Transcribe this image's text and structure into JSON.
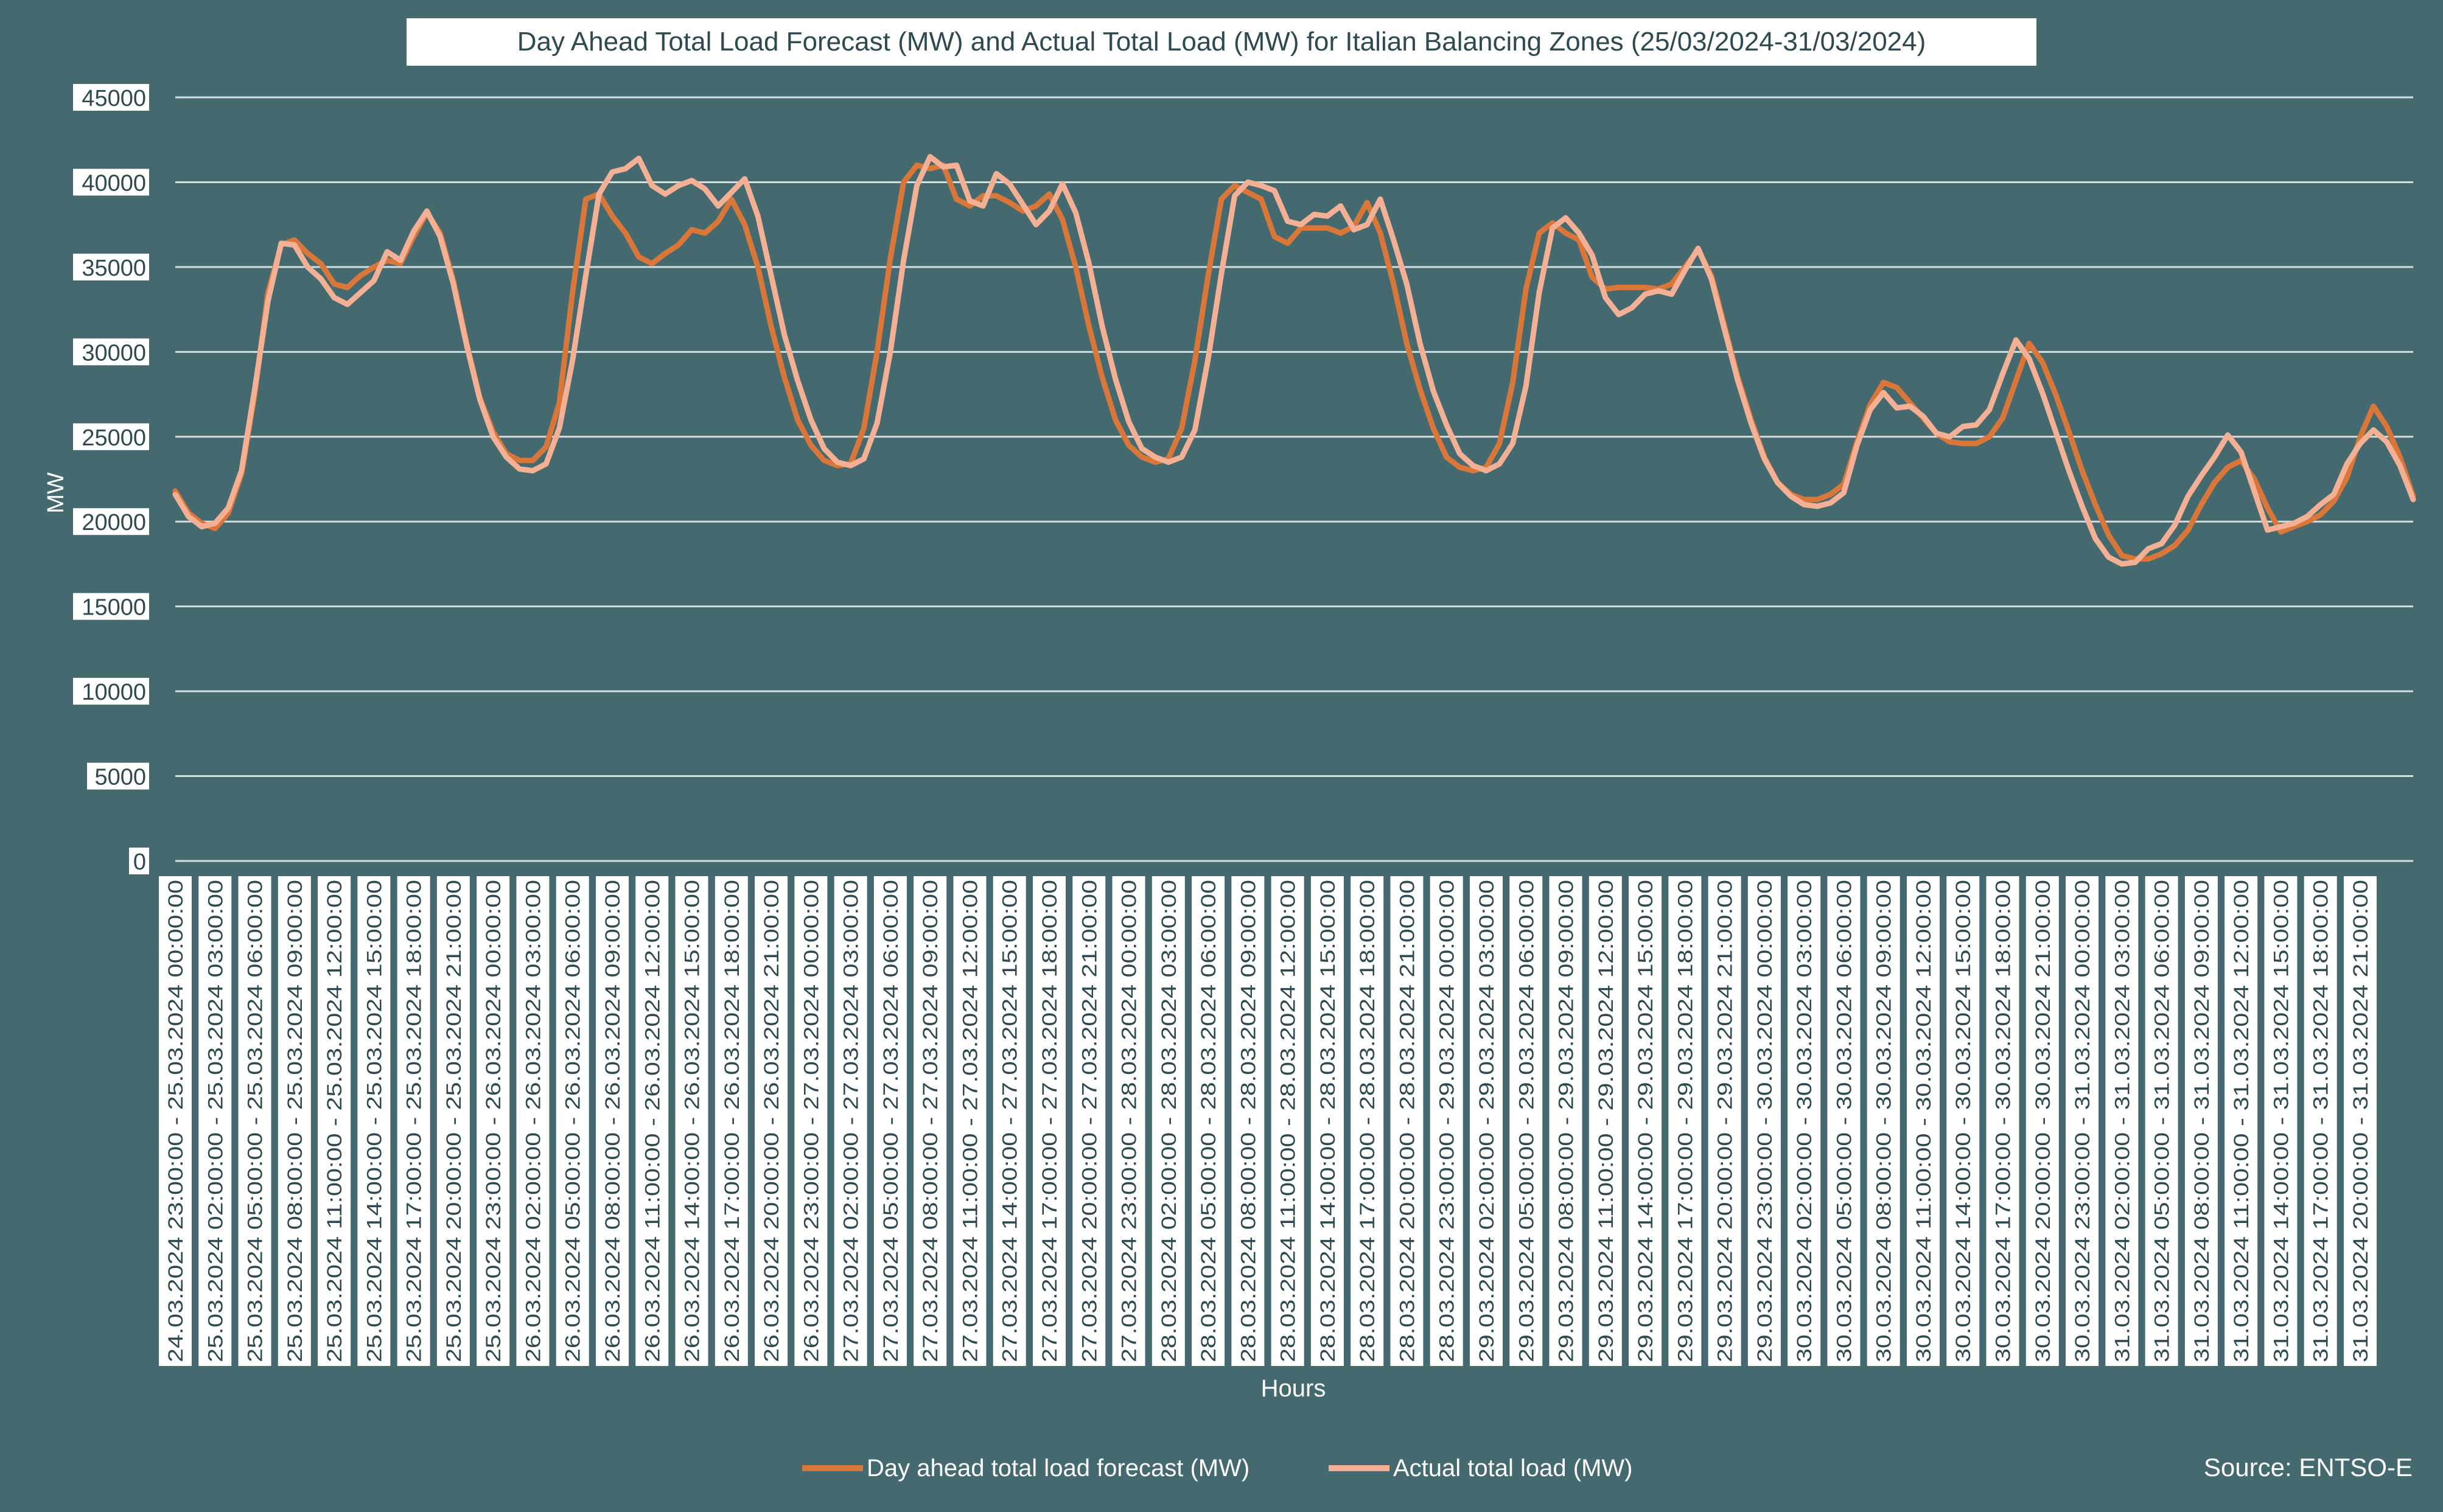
{
  "chart_data": {
    "type": "line",
    "title": "Day Ahead Total Load Forecast (MW) and Actual Total Load (MW) for Italian Balancing Zones (25/03/2024-31/03/2024)",
    "xlabel": "Hours",
    "ylabel": "MW",
    "ylim": [
      0,
      45000
    ],
    "yticks": [
      0,
      5000,
      10000,
      15000,
      20000,
      25000,
      30000,
      35000,
      40000,
      45000
    ],
    "grid": true,
    "legend_position": "bottom",
    "source": "Source: ENTSO-E",
    "x_tick_labels": [
      "24.03.2024 23:00:00 - 25.03.2024 00:00:00",
      "25.03.2024 02:00:00 - 25.03.2024 03:00:00",
      "25.03.2024 05:00:00 - 25.03.2024 06:00:00",
      "25.03.2024 08:00:00 - 25.03.2024 09:00:00",
      "25.03.2024 11:00:00 - 25.03.2024 12:00:00",
      "25.03.2024 14:00:00 - 25.03.2024 15:00:00",
      "25.03.2024 17:00:00 - 25.03.2024 18:00:00",
      "25.03.2024 20:00:00 - 25.03.2024 21:00:00",
      "25.03.2024 23:00:00 - 26.03.2024 00:00:00",
      "26.03.2024 02:00:00 - 26.03.2024 03:00:00",
      "26.03.2024 05:00:00 - 26.03.2024 06:00:00",
      "26.03.2024 08:00:00 - 26.03.2024 09:00:00",
      "26.03.2024 11:00:00 - 26.03.2024 12:00:00",
      "26.03.2024 14:00:00 - 26.03.2024 15:00:00",
      "26.03.2024 17:00:00 - 26.03.2024 18:00:00",
      "26.03.2024 20:00:00 - 26.03.2024 21:00:00",
      "26.03.2024 23:00:00 - 27.03.2024 00:00:00",
      "27.03.2024 02:00:00 - 27.03.2024 03:00:00",
      "27.03.2024 05:00:00 - 27.03.2024 06:00:00",
      "27.03.2024 08:00:00 - 27.03.2024 09:00:00",
      "27.03.2024 11:00:00 - 27.03.2024 12:00:00",
      "27.03.2024 14:00:00 - 27.03.2024 15:00:00",
      "27.03.2024 17:00:00 - 27.03.2024 18:00:00",
      "27.03.2024 20:00:00 - 27.03.2024 21:00:00",
      "27.03.2024 23:00:00 - 28.03.2024 00:00:00",
      "28.03.2024 02:00:00 - 28.03.2024 03:00:00",
      "28.03.2024 05:00:00 - 28.03.2024 06:00:00",
      "28.03.2024 08:00:00 - 28.03.2024 09:00:00",
      "28.03.2024 11:00:00 - 28.03.2024 12:00:00",
      "28.03.2024 14:00:00 - 28.03.2024 15:00:00",
      "28.03.2024 17:00:00 - 28.03.2024 18:00:00",
      "28.03.2024 20:00:00 - 28.03.2024 21:00:00",
      "28.03.2024 23:00:00 - 29.03.2024 00:00:00",
      "29.03.2024 02:00:00 - 29.03.2024 03:00:00",
      "29.03.2024 05:00:00 - 29.03.2024 06:00:00",
      "29.03.2024 08:00:00 - 29.03.2024 09:00:00",
      "29.03.2024 11:00:00 - 29.03.2024 12:00:00",
      "29.03.2024 14:00:00 - 29.03.2024 15:00:00",
      "29.03.2024 17:00:00 - 29.03.2024 18:00:00",
      "29.03.2024 20:00:00 - 29.03.2024 21:00:00",
      "29.03.2024 23:00:00 - 30.03.2024 00:00:00",
      "30.03.2024 02:00:00 - 30.03.2024 03:00:00",
      "30.03.2024 05:00:00 - 30.03.2024 06:00:00",
      "30.03.2024 08:00:00 - 30.03.2024 09:00:00",
      "30.03.2024 11:00:00 - 30.03.2024 12:00:00",
      "30.03.2024 14:00:00 - 30.03.2024 15:00:00",
      "30.03.2024 17:00:00 - 30.03.2024 18:00:00",
      "30.03.2024 20:00:00 - 30.03.2024 21:00:00",
      "30.03.2024 23:00:00 - 31.03.2024 00:00:00",
      "31.03.2024 02:00:00 - 31.03.2024 03:00:00",
      "31.03.2024 05:00:00 - 31.03.2024 06:00:00",
      "31.03.2024 08:00:00 - 31.03.2024 09:00:00",
      "31.03.2024 11:00:00 - 31.03.2024 12:00:00",
      "31.03.2024 14:00:00 - 31.03.2024 15:00:00",
      "31.03.2024 17:00:00 - 31.03.2024 18:00:00",
      "31.03.2024 20:00:00 - 31.03.2024 21:00:00"
    ],
    "x_tick_every_hours": 3,
    "colors": {
      "background": "#44696F",
      "gridline": "#D5DFE0",
      "forecast": "#D9773A",
      "actual": "#F4B095",
      "tick_label_bg": "#FFFFFF",
      "tick_label_text": "#2E4A50"
    },
    "series": [
      {
        "name": "Day ahead total load forecast (MW)",
        "color": "#D9773A",
        "values": [
          21800,
          20500,
          19900,
          19600,
          20500,
          22800,
          27500,
          33500,
          36300,
          36600,
          35800,
          35200,
          34000,
          33800,
          34500,
          35000,
          35400,
          35200,
          36800,
          38200,
          37000,
          34200,
          30500,
          27300,
          25300,
          24000,
          23600,
          23600,
          24400,
          27000,
          33500,
          39000,
          39300,
          38000,
          37000,
          35600,
          35200,
          35800,
          36300,
          37200,
          37000,
          37700,
          39000,
          37500,
          35000,
          31500,
          28500,
          26000,
          24500,
          23600,
          23300,
          23400,
          25500,
          30000,
          35500,
          40000,
          41000,
          40800,
          41000,
          39000,
          38600,
          39200,
          39200,
          38800,
          38300,
          38600,
          39300,
          37800,
          35000,
          31500,
          28500,
          26000,
          24500,
          23800,
          23500,
          23700,
          25500,
          29500,
          34500,
          39000,
          39800,
          39400,
          39000,
          36800,
          36400,
          37300,
          37300,
          37300,
          37000,
          37400,
          38800,
          37000,
          34000,
          30500,
          27800,
          25500,
          23800,
          23200,
          23000,
          23200,
          24600,
          28200,
          33700,
          37000,
          37600,
          37000,
          36600,
          34400,
          33700,
          33800,
          33800,
          33800,
          33700,
          34000,
          35000,
          36000,
          34500,
          31500,
          28500,
          26000,
          23800,
          22300,
          21600,
          21300,
          21300,
          21600,
          22200,
          24700,
          26900,
          28200,
          27900,
          27000,
          26100,
          25200,
          24700,
          24600,
          24600,
          25000,
          26100,
          28300,
          30500,
          29400,
          27500,
          25300,
          23000,
          21000,
          19200,
          18000,
          17800,
          17800,
          18100,
          18600,
          19500,
          21000,
          22300,
          23200,
          23600,
          22500,
          20800,
          19400,
          19700,
          20000,
          20400,
          21200,
          22600,
          25000,
          26800,
          25600,
          23800,
          21500
        ]
      },
      {
        "name": "Actual total load (MW)",
        "color": "#F4B095",
        "values": [
          21600,
          20300,
          19700,
          19900,
          20800,
          23000,
          27800,
          33000,
          36400,
          36300,
          35000,
          34300,
          33200,
          32800,
          33500,
          34200,
          35900,
          35400,
          37100,
          38300,
          36800,
          34000,
          30400,
          27200,
          25000,
          23800,
          23100,
          23000,
          23400,
          25500,
          29500,
          34500,
          39300,
          40600,
          40800,
          41400,
          39800,
          39300,
          39800,
          40100,
          39600,
          38600,
          39400,
          40200,
          38000,
          34500,
          31000,
          28300,
          26000,
          24300,
          23500,
          23300,
          23700,
          25800,
          30000,
          35400,
          39800,
          41500,
          40900,
          41000,
          38900,
          38600,
          40500,
          39900,
          38700,
          37500,
          38300,
          39900,
          38200,
          35200,
          31500,
          28400,
          25900,
          24300,
          23800,
          23500,
          23800,
          25400,
          29600,
          34600,
          39200,
          40000,
          39800,
          39500,
          37700,
          37500,
          38100,
          38000,
          38600,
          37200,
          37500,
          39000,
          36600,
          34000,
          30500,
          27700,
          25700,
          24000,
          23300,
          23000,
          23400,
          24600,
          28000,
          33500,
          37300,
          37900,
          37000,
          35700,
          33200,
          32200,
          32600,
          33400,
          33600,
          33400,
          34800,
          36100,
          34300,
          31300,
          28300,
          25800,
          23700,
          22300,
          21500,
          21000,
          20900,
          21100,
          21700,
          24500,
          26600,
          27600,
          26700,
          26800,
          26200,
          25200,
          25000,
          25600,
          25700,
          26600,
          28700,
          30700,
          29600,
          27600,
          25300,
          23000,
          20900,
          19000,
          17900,
          17500,
          17600,
          18400,
          18700,
          19800,
          21500,
          22700,
          23800,
          25100,
          24100,
          21800,
          19500,
          19700,
          19900,
          20300,
          21000,
          21600,
          23400,
          24600,
          25400,
          24700,
          23300,
          21300
        ]
      }
    ]
  },
  "legend": {
    "forecast_label": "Day ahead total load forecast (MW)",
    "actual_label": "Actual total load (MW)"
  }
}
